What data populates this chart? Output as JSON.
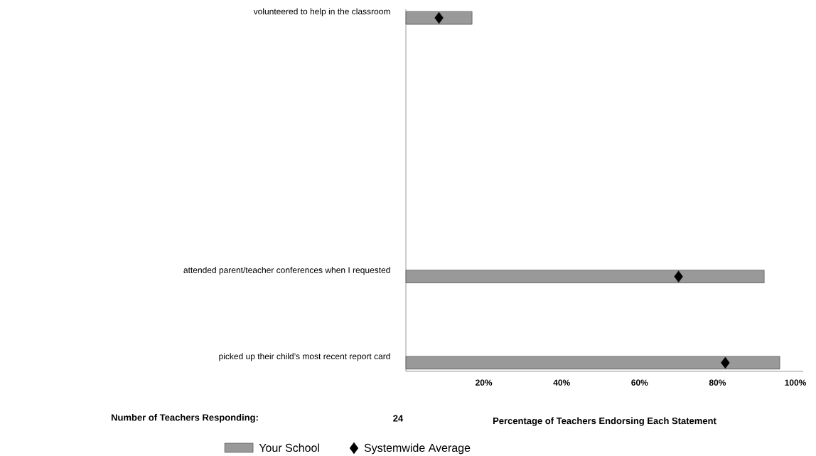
{
  "chart_data": {
    "type": "bar",
    "orientation": "horizontal",
    "categories": [
      "volunteered to help in the classroom",
      null,
      null,
      "attended parent/teacher conferences when I requested",
      "picked up their child’s most recent report card"
    ],
    "series": [
      {
        "name": "Your School",
        "color": "#999999",
        "values": [
          17,
          null,
          null,
          92,
          96
        ]
      },
      {
        "name": "Systemwide Average",
        "type": "scatter",
        "marker": "diamond",
        "color": "#000000",
        "values": [
          8.5,
          null,
          null,
          70,
          82
        ]
      }
    ],
    "xlabel": "Percentage of Teachers Endorsing Each Statement",
    "xlim": [
      0,
      102
    ],
    "xticks": [
      {
        "value": 20,
        "label": "20%"
      },
      {
        "value": 40,
        "label": "40%"
      },
      {
        "value": 60,
        "label": "60%"
      },
      {
        "value": 80,
        "label": "80%"
      },
      {
        "value": 100,
        "label": "100%"
      }
    ],
    "annotations": [
      "Number of Teachers Responding:",
      "24"
    ],
    "legend": "bottom"
  }
}
